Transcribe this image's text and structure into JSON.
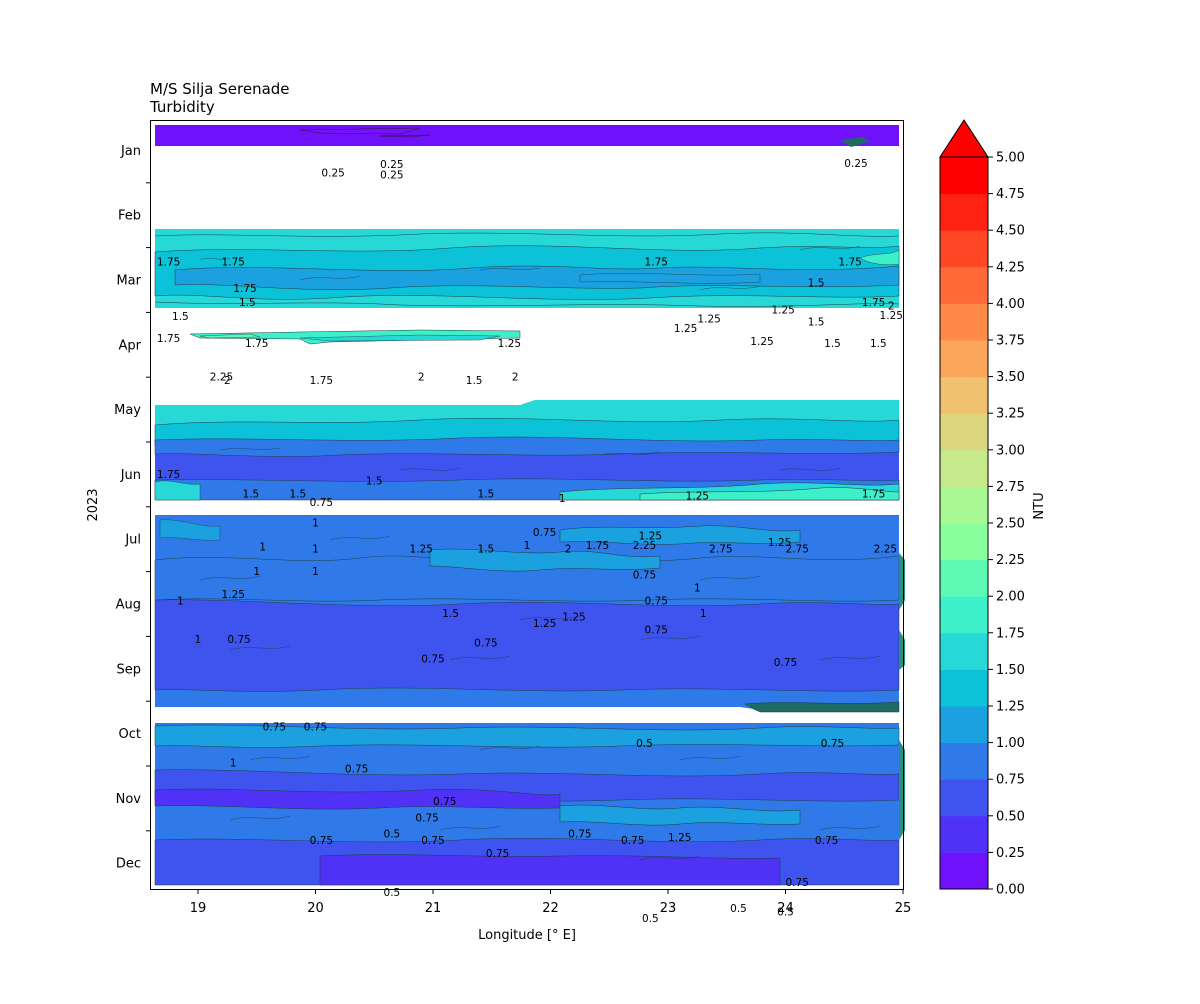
{
  "chart_data": {
    "type": "heatmap",
    "subtype": "filled-contour",
    "title": "M/S Silja Serenade",
    "subtitle": "Turbidity",
    "xlabel": "Longitude [° E]",
    "ylabel": "2023",
    "xlim": [
      18.6,
      25.0
    ],
    "x_ticks": [
      19,
      20,
      21,
      22,
      23,
      24,
      25
    ],
    "x_tick_labels": [
      "19",
      "20",
      "21",
      "22",
      "23",
      "24",
      "25"
    ],
    "y_axis_months": [
      "Jan",
      "Feb",
      "Mar",
      "Apr",
      "May",
      "Jun",
      "Jul",
      "Aug",
      "Sep",
      "Oct",
      "Nov",
      "Dec"
    ],
    "colorbar": {
      "label": "NTU",
      "levels": [
        0.0,
        0.25,
        0.5,
        0.75,
        1.0,
        1.25,
        1.5,
        1.75,
        2.0,
        2.25,
        2.5,
        2.75,
        3.0,
        3.25,
        3.5,
        3.75,
        4.0,
        4.25,
        4.5,
        4.75,
        5.0
      ],
      "tick_labels": [
        "0.00",
        "0.25",
        "0.50",
        "0.75",
        "1.00",
        "1.25",
        "1.50",
        "1.75",
        "2.00",
        "2.25",
        "2.50",
        "2.75",
        "3.00",
        "3.25",
        "3.50",
        "3.75",
        "4.00",
        "4.25",
        "4.50",
        "4.75",
        "5.00"
      ],
      "colors": [
        "#7011fb",
        "#4f32f5",
        "#3f54ef",
        "#2f7ae8",
        "#1ba0e0",
        "#0cc2d8",
        "#26d9d7",
        "#3ef0c9",
        "#5efab5",
        "#88fe9c",
        "#a8f994",
        "#c5e98b",
        "#dcd67e",
        "#f0c16f",
        "#fca65b",
        "#ff8a48",
        "#ff6a38",
        "#ff4726",
        "#ff2212",
        "#ff0000"
      ],
      "extend": "max"
    },
    "bands": [
      {
        "period": "early Jan",
        "lon": [
          18.6,
          24.95
        ],
        "dominant": 0.12
      },
      {
        "period": "mid Feb - mid Mar",
        "lon": [
          18.6,
          24.95
        ],
        "dominant": 1.4
      },
      {
        "period": "early Apr",
        "lon": [
          18.9,
          21.75
        ],
        "dominant": 1.85
      },
      {
        "period": "May - end Jun",
        "lon": [
          18.6,
          24.95
        ],
        "dominant": 0.65
      },
      {
        "period": "Jul - Sep",
        "lon": [
          18.6,
          24.95
        ],
        "dominant": 0.85
      },
      {
        "period": "Oct - Dec",
        "lon": [
          18.6,
          24.95
        ],
        "dominant": 0.7
      }
    ],
    "contour_labels": [
      {
        "text": "0.25",
        "lon": 20.15,
        "month": 0.85
      },
      {
        "text": "0.25",
        "lon": 20.65,
        "month": 0.88
      },
      {
        "text": "0.25",
        "lon": 20.65,
        "month": 0.72
      },
      {
        "text": "0.25",
        "lon": 24.6,
        "month": 0.7
      },
      {
        "text": "1.75",
        "lon": 18.75,
        "month": 2.22
      },
      {
        "text": "1.75",
        "lon": 19.3,
        "month": 2.22
      },
      {
        "text": "1.75",
        "lon": 19.4,
        "month": 2.63
      },
      {
        "text": "1.5",
        "lon": 19.42,
        "month": 2.85
      },
      {
        "text": "1.5",
        "lon": 18.85,
        "month": 3.06
      },
      {
        "text": "1.75",
        "lon": 18.75,
        "month": 3.4
      },
      {
        "text": "1.75",
        "lon": 19.5,
        "month": 3.48
      },
      {
        "text": "1.25",
        "lon": 21.65,
        "month": 3.48
      },
      {
        "text": "1.75",
        "lon": 22.9,
        "month": 2.22
      },
      {
        "text": "1.75",
        "lon": 24.55,
        "month": 2.22
      },
      {
        "text": "1.5",
        "lon": 24.26,
        "month": 2.55
      },
      {
        "text": "1.25",
        "lon": 23.98,
        "month": 2.96
      },
      {
        "text": "1.25",
        "lon": 23.35,
        "month": 3.1
      },
      {
        "text": "1.25",
        "lon": 23.15,
        "month": 3.25
      },
      {
        "text": "1.5",
        "lon": 24.26,
        "month": 3.15
      },
      {
        "text": "1.25",
        "lon": 23.8,
        "month": 3.45
      },
      {
        "text": "1.5",
        "lon": 24.4,
        "month": 3.48
      },
      {
        "text": "1.5",
        "lon": 24.79,
        "month": 3.48
      },
      {
        "text": "1.75",
        "lon": 24.75,
        "month": 2.85
      },
      {
        "text": "2",
        "lon": 24.9,
        "month": 2.9
      },
      {
        "text": "1.25",
        "lon": 24.9,
        "month": 3.05
      },
      {
        "text": "2.25",
        "lon": 19.2,
        "month": 4.0
      },
      {
        "text": "2",
        "lon": 19.25,
        "month": 4.05
      },
      {
        "text": "1.75",
        "lon": 20.05,
        "month": 4.05
      },
      {
        "text": "2",
        "lon": 20.9,
        "month": 4.0
      },
      {
        "text": "1.5",
        "lon": 21.35,
        "month": 4.05
      },
      {
        "text": "2",
        "lon": 21.7,
        "month": 4.0
      },
      {
        "text": "1.75",
        "lon": 18.75,
        "month": 5.5
      },
      {
        "text": "1.5",
        "lon": 19.45,
        "month": 5.8
      },
      {
        "text": "1.5",
        "lon": 19.85,
        "month": 5.8
      },
      {
        "text": "1.5",
        "lon": 20.5,
        "month": 5.6
      },
      {
        "text": "0.75",
        "lon": 20.05,
        "month": 5.93
      },
      {
        "text": "1.5",
        "lon": 21.45,
        "month": 5.8
      },
      {
        "text": "1",
        "lon": 22.1,
        "month": 5.87
      },
      {
        "text": "1.25",
        "lon": 23.25,
        "month": 5.83
      },
      {
        "text": "1.75",
        "lon": 24.75,
        "month": 5.8
      },
      {
        "text": "1",
        "lon": 20.0,
        "month": 6.25
      },
      {
        "text": "0.75",
        "lon": 21.95,
        "month": 6.4
      },
      {
        "text": "1",
        "lon": 19.55,
        "month": 6.62
      },
      {
        "text": "1",
        "lon": 20.0,
        "month": 6.65
      },
      {
        "text": "1.25",
        "lon": 20.9,
        "month": 6.65
      },
      {
        "text": "1.5",
        "lon": 21.45,
        "month": 6.65
      },
      {
        "text": "1",
        "lon": 21.8,
        "month": 6.6
      },
      {
        "text": "2",
        "lon": 22.15,
        "month": 6.65
      },
      {
        "text": "1.75",
        "lon": 22.4,
        "month": 6.6
      },
      {
        "text": "2.25",
        "lon": 22.8,
        "month": 6.6
      },
      {
        "text": "1.25",
        "lon": 22.85,
        "month": 6.45
      },
      {
        "text": "2.75",
        "lon": 23.45,
        "month": 6.65
      },
      {
        "text": "1.25",
        "lon": 23.95,
        "month": 6.55
      },
      {
        "text": "2.75",
        "lon": 24.1,
        "month": 6.65
      },
      {
        "text": "2.25",
        "lon": 24.85,
        "month": 6.65
      },
      {
        "text": "1",
        "lon": 19.5,
        "month": 7.0
      },
      {
        "text": "1",
        "lon": 20.0,
        "month": 7.0
      },
      {
        "text": "1.25",
        "lon": 19.3,
        "month": 7.35
      },
      {
        "text": "1",
        "lon": 18.85,
        "month": 7.45
      },
      {
        "text": "0.75",
        "lon": 22.8,
        "month": 7.05
      },
      {
        "text": "0.75",
        "lon": 22.9,
        "month": 7.45
      },
      {
        "text": "1",
        "lon": 23.25,
        "month": 7.25
      },
      {
        "text": "1.5",
        "lon": 21.15,
        "month": 7.65
      },
      {
        "text": "1.25",
        "lon": 21.95,
        "month": 7.8
      },
      {
        "text": "1.25",
        "lon": 22.2,
        "month": 7.7
      },
      {
        "text": "0.75",
        "lon": 22.9,
        "month": 7.9
      },
      {
        "text": "1",
        "lon": 23.3,
        "month": 7.65
      },
      {
        "text": "0.75",
        "lon": 19.35,
        "month": 8.05
      },
      {
        "text": "1",
        "lon": 19.0,
        "month": 8.05
      },
      {
        "text": "0.75",
        "lon": 21.45,
        "month": 8.1
      },
      {
        "text": "0.75",
        "lon": 21.0,
        "month": 8.35
      },
      {
        "text": "0.75",
        "lon": 24.0,
        "month": 8.4
      },
      {
        "text": "0.75",
        "lon": 19.65,
        "month": 9.4
      },
      {
        "text": "0.75",
        "lon": 20.0,
        "month": 9.4
      },
      {
        "text": "0.5",
        "lon": 22.8,
        "month": 9.65
      },
      {
        "text": "0.75",
        "lon": 24.4,
        "month": 9.65
      },
      {
        "text": "1",
        "lon": 19.3,
        "month": 9.95
      },
      {
        "text": "0.75",
        "lon": 20.35,
        "month": 10.05
      },
      {
        "text": "0.75",
        "lon": 21.1,
        "month": 10.55
      },
      {
        "text": "0.75",
        "lon": 20.95,
        "month": 10.8
      },
      {
        "text": "0.5",
        "lon": 20.65,
        "month": 11.05
      },
      {
        "text": "0.75",
        "lon": 21.0,
        "month": 11.15
      },
      {
        "text": "0.75",
        "lon": 20.05,
        "month": 11.15
      },
      {
        "text": "0.75",
        "lon": 22.25,
        "month": 11.05
      },
      {
        "text": "0.75",
        "lon": 22.7,
        "month": 11.15
      },
      {
        "text": "1.25",
        "lon": 23.1,
        "month": 11.1
      },
      {
        "text": "0.75",
        "lon": 21.55,
        "month": 11.35
      },
      {
        "text": "0.75",
        "lon": 24.35,
        "month": 11.15
      },
      {
        "text": "0.5",
        "lon": 20.65,
        "month": 11.95
      },
      {
        "text": "0.75",
        "lon": 24.1,
        "month": 11.8
      },
      {
        "text": "0.5",
        "lon": 23.6,
        "month": 12.2
      },
      {
        "text": "0.5",
        "lon": 24.0,
        "month": 12.25
      },
      {
        "text": "0.5",
        "lon": 22.85,
        "month": 12.35
      }
    ]
  }
}
